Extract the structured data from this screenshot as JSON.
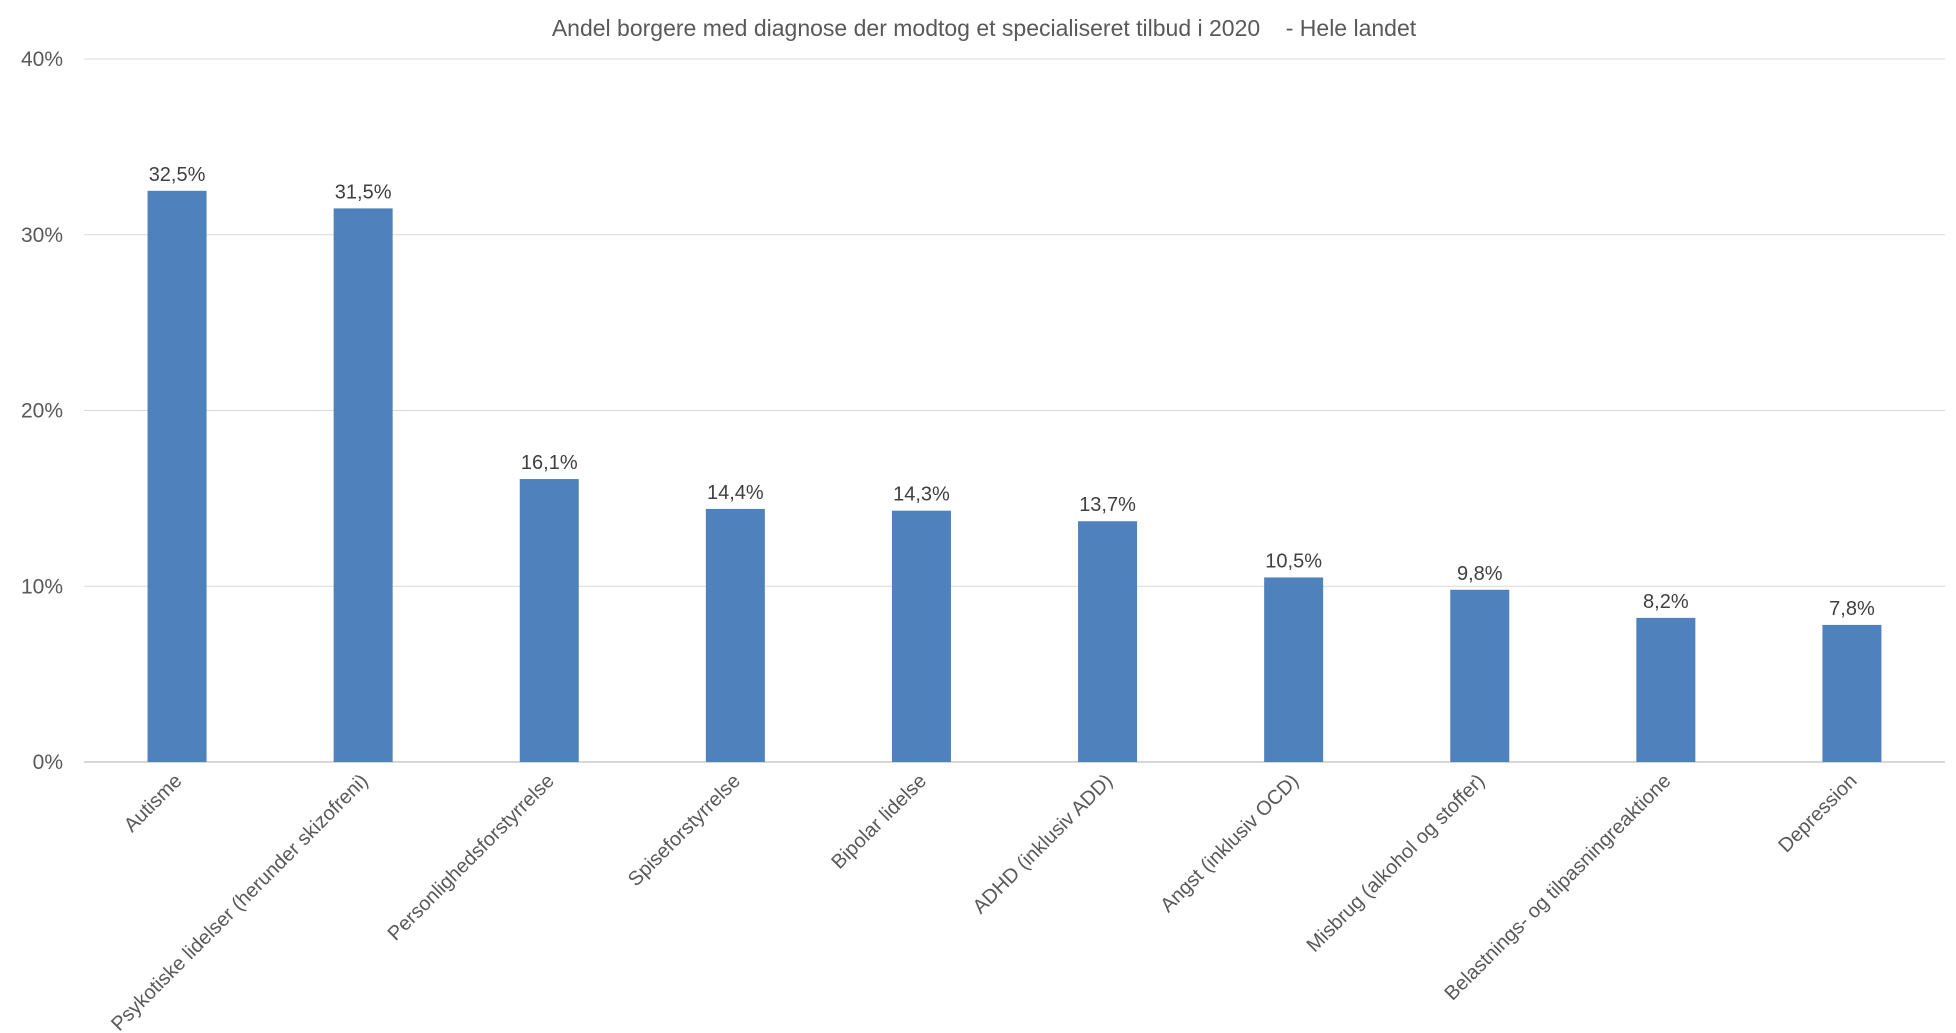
{
  "chart_data": {
    "type": "bar",
    "title": "Andel borgere med diagnose der modtog et specialiseret tilbud i 2020    - Hele landet",
    "categories": [
      "Autisme",
      "Psykotiske lidelser (herunder skizofreni)",
      "Personlighedsforstyrrelse",
      "Spiseforstyrrelse",
      "Bipolar lidelse",
      "ADHD (inklusiv ADD)",
      "Angst (inklusiv OCD)",
      "Misbrug (alkohol og stoffer)",
      "Belastnings- og tilpasningreaktione",
      "Depression"
    ],
    "values": [
      32.5,
      31.5,
      16.1,
      14.4,
      14.3,
      13.7,
      10.5,
      9.8,
      8.2,
      7.8
    ],
    "data_labels": [
      "32,5%",
      "31,5%",
      "16,1%",
      "14,4%",
      "14,3%",
      "13,7%",
      "10,5%",
      "9,8%",
      "8,2%",
      "7,8%"
    ],
    "yticks": [
      "0%",
      "10%",
      "20%",
      "30%",
      "40%"
    ],
    "ylim": [
      0,
      40
    ],
    "grid": true,
    "legend": "none",
    "bar_color": "#4f81bd"
  }
}
